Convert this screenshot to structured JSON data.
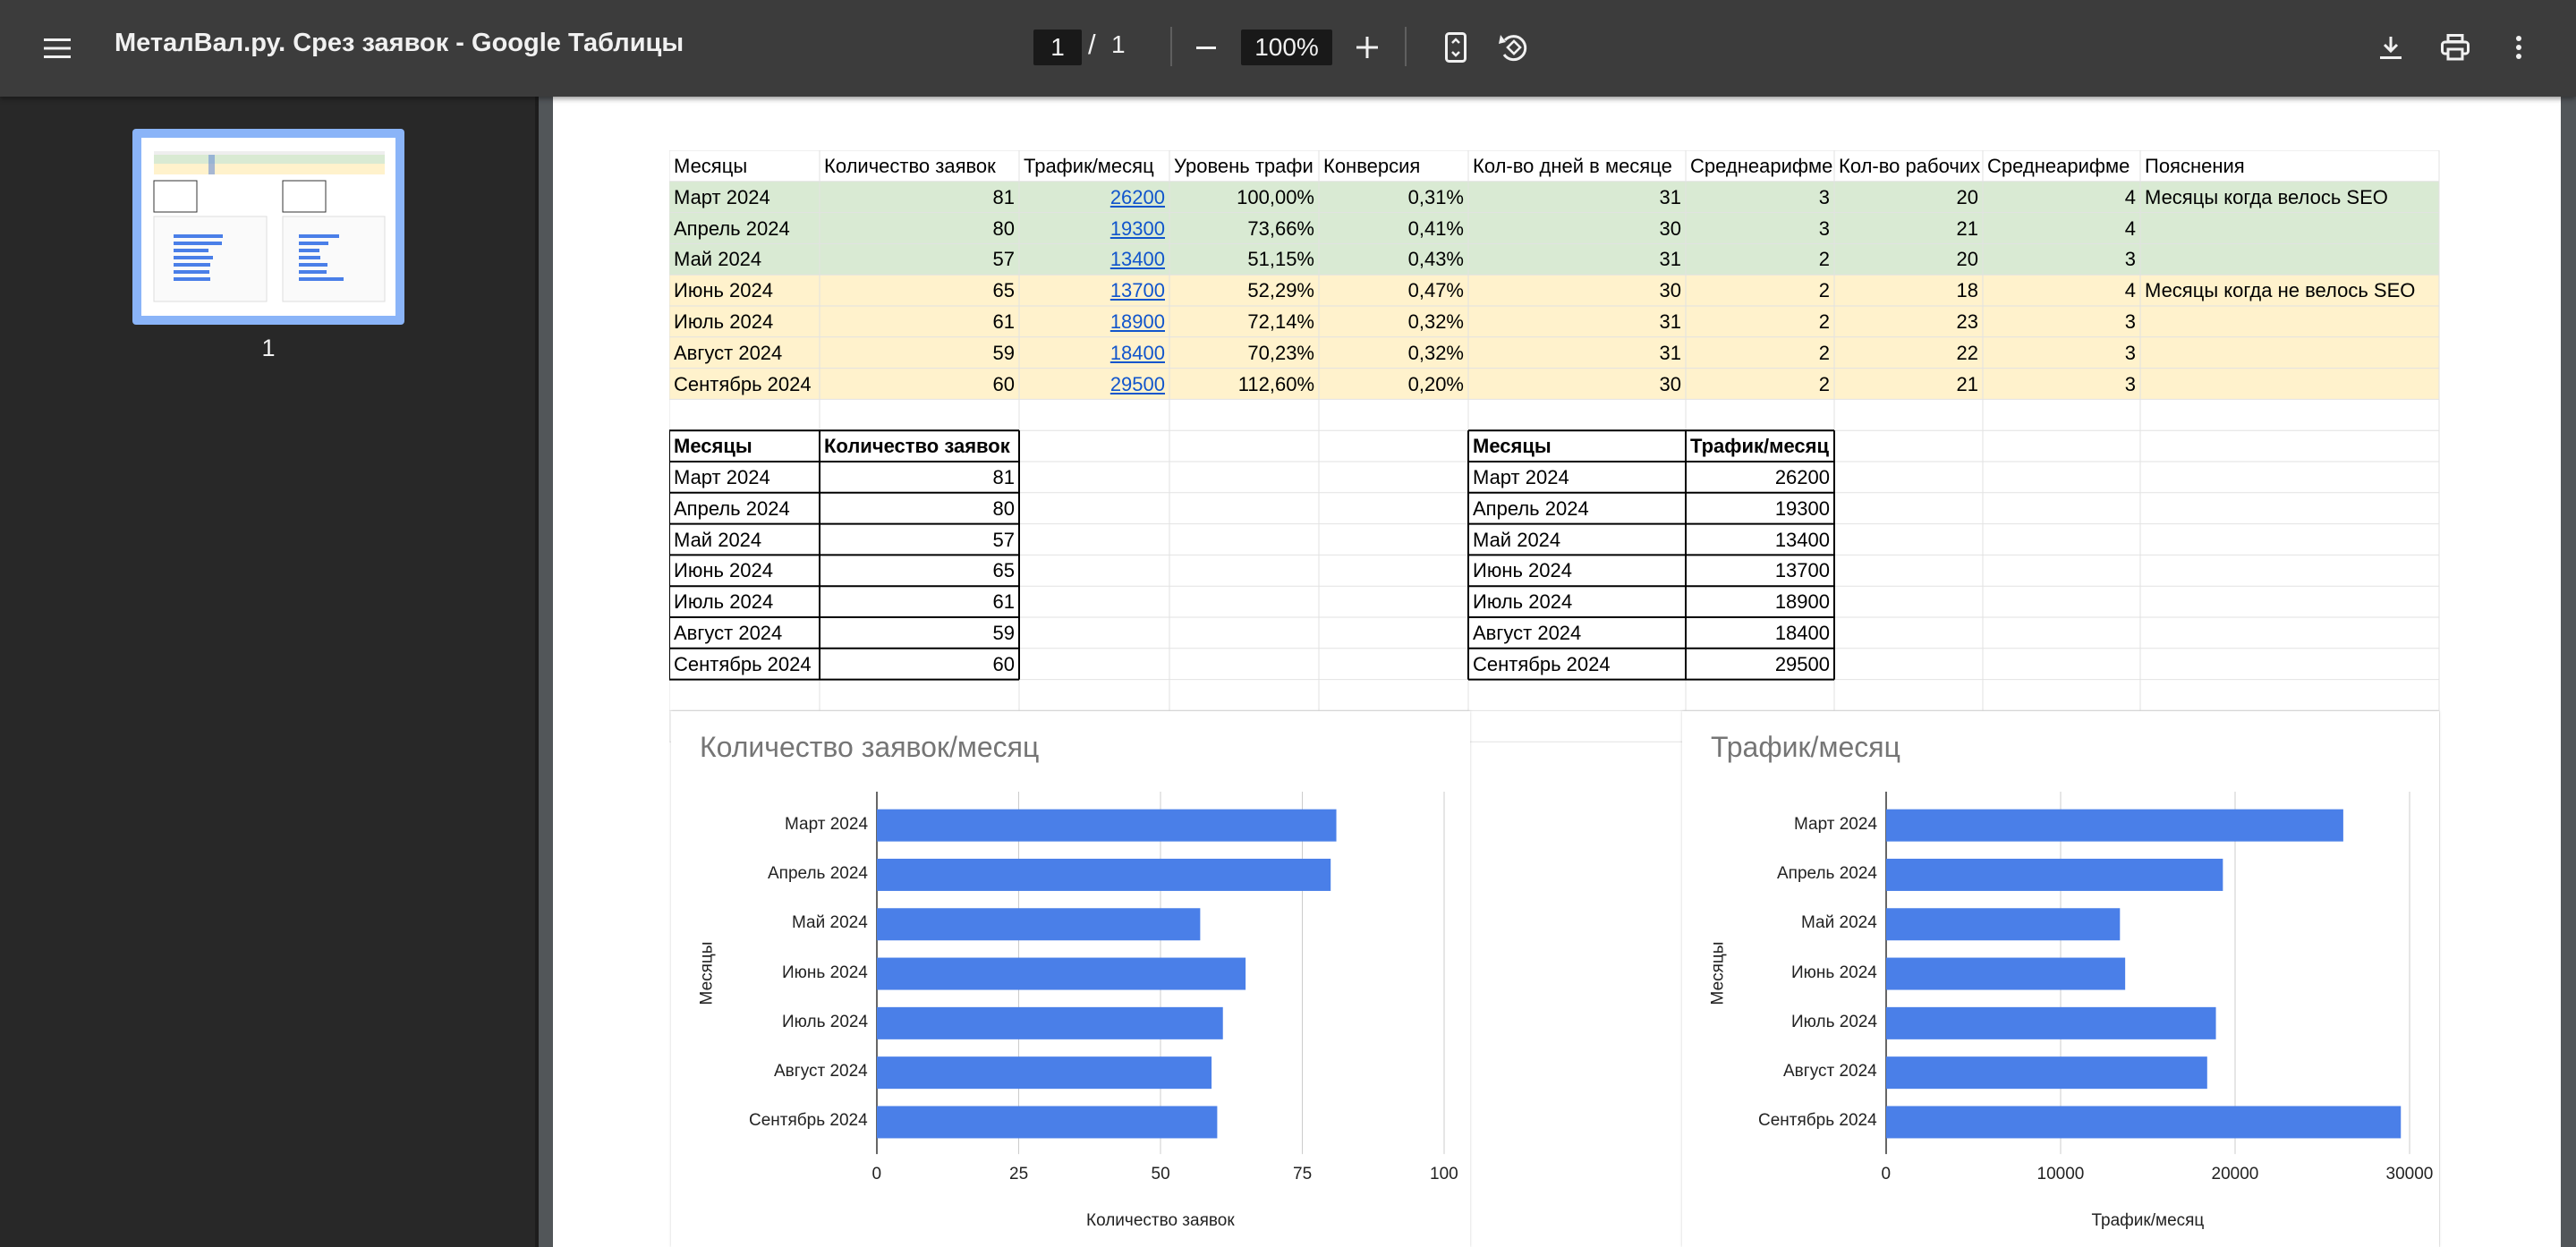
{
  "toolbar": {
    "title": "МеталВал.ру. Срез заявок - Google Таблицы",
    "page_current": "1",
    "page_separator": "/",
    "page_total": "1",
    "zoom": "100%",
    "icons": [
      "menu-icon",
      "zoom-out-icon",
      "zoom-in-icon",
      "fit-page-icon",
      "rotate-icon",
      "download-icon",
      "print-icon",
      "more-icon"
    ]
  },
  "sidebar": {
    "thumbnail_label": "1"
  },
  "main_table": {
    "headers": [
      "Месяцы",
      "Количество заявок",
      "Трафик/месяц",
      "Уровень трафи",
      "Конверсия",
      "Кол-во дней в месяце",
      "Среднеарифме",
      "Кол-во рабочих д",
      "Среднеарифме",
      "Пояснения"
    ],
    "rows": [
      [
        "Март 2024",
        "81",
        "26200",
        "100,00%",
        "0,31%",
        "31",
        "3",
        "20",
        "4",
        "Месяцы когда велось SEO"
      ],
      [
        "Апрель 2024",
        "80",
        "19300",
        "73,66%",
        "0,41%",
        "30",
        "3",
        "21",
        "4",
        ""
      ],
      [
        "Май 2024",
        "57",
        "13400",
        "51,15%",
        "0,43%",
        "31",
        "2",
        "20",
        "3",
        ""
      ],
      [
        "Июнь 2024",
        "65",
        "13700",
        "52,29%",
        "0,47%",
        "30",
        "2",
        "18",
        "4",
        "Месяцы когда не велось SEO"
      ],
      [
        "Июль 2024",
        "61",
        "18900",
        "72,14%",
        "0,32%",
        "31",
        "2",
        "23",
        "3",
        ""
      ],
      [
        "Август 2024",
        "59",
        "18400",
        "70,23%",
        "0,32%",
        "31",
        "2",
        "22",
        "3",
        ""
      ],
      [
        "Сентябрь 2024",
        "60",
        "29500",
        "112,60%",
        "0,20%",
        "30",
        "2",
        "21",
        "3",
        ""
      ]
    ],
    "row_colors": [
      "#d9ead3",
      "#d9ead3",
      "#d9ead3",
      "#fff2cc",
      "#fff2cc",
      "#fff2cc",
      "#fff2cc"
    ]
  },
  "orders_table": {
    "headers": [
      "Месяцы",
      "Количество заявок"
    ],
    "rows": [
      [
        "Март 2024",
        "81"
      ],
      [
        "Апрель 2024",
        "80"
      ],
      [
        "Май 2024",
        "57"
      ],
      [
        "Июнь 2024",
        "65"
      ],
      [
        "Июль 2024",
        "61"
      ],
      [
        "Август 2024",
        "59"
      ],
      [
        "Сентябрь 2024",
        "60"
      ]
    ]
  },
  "traffic_table": {
    "headers": [
      "Месяцы",
      "Трафик/месяц"
    ],
    "rows": [
      [
        "Март 2024",
        "26200"
      ],
      [
        "Апрель 2024",
        "19300"
      ],
      [
        "Май 2024",
        "13400"
      ],
      [
        "Июнь 2024",
        "13700"
      ],
      [
        "Июль 2024",
        "18900"
      ],
      [
        "Август 2024",
        "18400"
      ],
      [
        "Сентябрь 2024",
        "29500"
      ]
    ]
  },
  "chart_data": [
    {
      "type": "bar",
      "orientation": "horizontal",
      "title": "Количество заявок/месяц",
      "xlabel": "Количество заявок",
      "ylabel": "Месяцы",
      "categories": [
        "Март 2024",
        "Апрель 2024",
        "Май 2024",
        "Июнь 2024",
        "Июль 2024",
        "Август 2024",
        "Сентябрь 2024"
      ],
      "values": [
        81,
        80,
        57,
        65,
        61,
        59,
        60
      ],
      "xlim": [
        0,
        100
      ],
      "xticks": [
        "0",
        "25",
        "50",
        "75",
        "100"
      ],
      "grid": true,
      "color": "#4a7fe8"
    },
    {
      "type": "bar",
      "orientation": "horizontal",
      "title": "Трафик/месяц",
      "xlabel": "Трафик/месяц",
      "ylabel": "Месяцы",
      "categories": [
        "Март 2024",
        "Апрель 2024",
        "Май 2024",
        "Июнь 2024",
        "Июль 2024",
        "Август 2024",
        "Сентябрь 2024"
      ],
      "values": [
        26200,
        19300,
        13400,
        13700,
        18900,
        18400,
        29500
      ],
      "xlim": [
        0,
        30000
      ],
      "xticks": [
        "0",
        "10000",
        "20000",
        "30000"
      ],
      "grid": true,
      "color": "#4a7fe8"
    }
  ]
}
